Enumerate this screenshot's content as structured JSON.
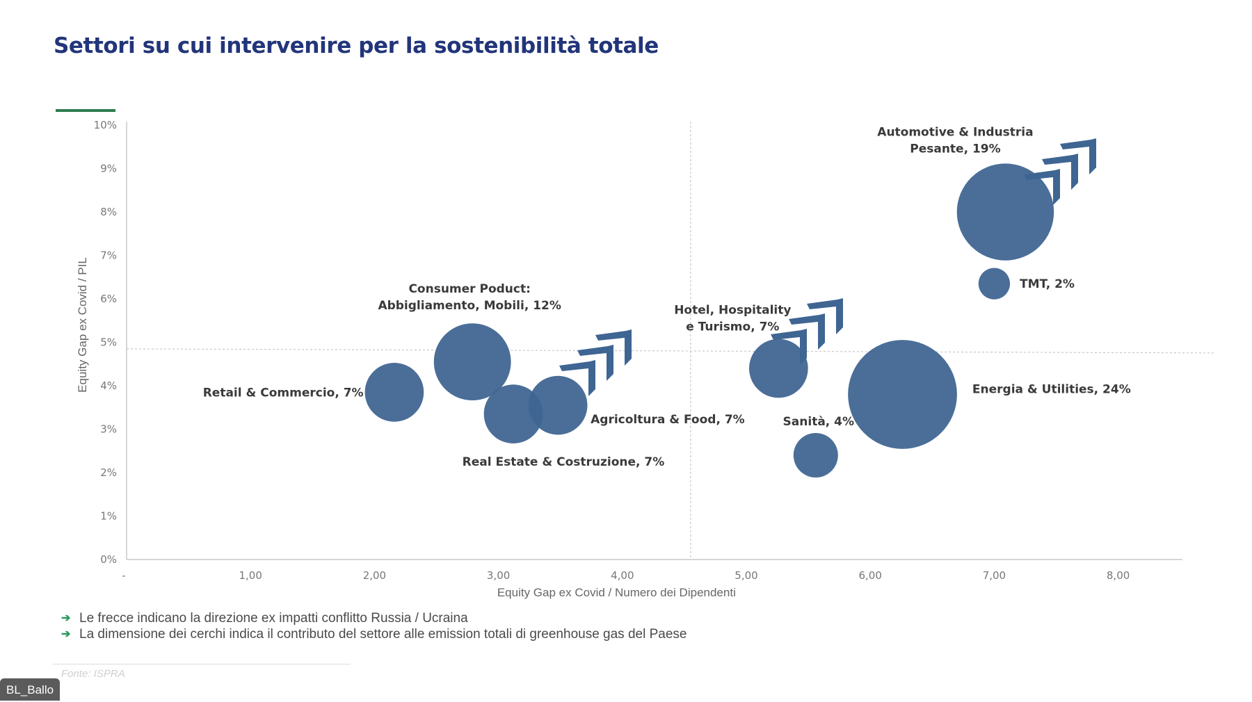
{
  "slide": {
    "title": "Settori su cui intervenire per la sostenibilità totale",
    "notes": [
      "Le frecce indicano la direzione ex impatti conflitto Russia / Ucraina",
      "La dimensione dei cerchi indica il contributo del settore alle emission  totali di greenhouse gas del Paese"
    ],
    "source": "Fonte: ISPRA",
    "user_tag": "BL_Ballo",
    "colors": {
      "title": "#22357a",
      "bubble": "#3f6592",
      "accent": "#2e7d4f",
      "note_arrow": "#2e9a5a"
    },
    "icons": {
      "note_bullet": "arrow-right-icon"
    }
  },
  "chart_data": {
    "type": "bubble",
    "title": "Settori su cui intervenire per la sostenibilità totale",
    "xlabel": "Equity Gap ex Covid / Numero dei Dipendenti",
    "ylabel": "Equity Gap ex Covid / PIL",
    "xlim": [
      0,
      8.5
    ],
    "ylim": [
      0,
      10
    ],
    "x_ticks": [
      {
        "value": 0,
        "label": "-"
      },
      {
        "value": 1,
        "label": "1,00"
      },
      {
        "value": 2,
        "label": "2,00"
      },
      {
        "value": 3,
        "label": "3,00"
      },
      {
        "value": 4,
        "label": "4,00"
      },
      {
        "value": 5,
        "label": "5,00"
      },
      {
        "value": 6,
        "label": "6,00"
      },
      {
        "value": 7,
        "label": "7,00"
      },
      {
        "value": 8,
        "label": "8,00"
      }
    ],
    "y_ticks": [
      {
        "value": 0,
        "label": "0%"
      },
      {
        "value": 1,
        "label": "1%"
      },
      {
        "value": 2,
        "label": "2%"
      },
      {
        "value": 3,
        "label": "3%"
      },
      {
        "value": 4,
        "label": "4%"
      },
      {
        "value": 5,
        "label": "5%"
      },
      {
        "value": 6,
        "label": "6%"
      },
      {
        "value": 7,
        "label": "7%"
      },
      {
        "value": 8,
        "label": "8%"
      },
      {
        "value": 9,
        "label": "9%"
      },
      {
        "value": 10,
        "label": "10%"
      }
    ],
    "grid": false,
    "reference_lines": {
      "vertical_x": 4.55,
      "horizontal_y": 4.85
    },
    "size_meaning": "share of national greenhouse gas emissions (%)",
    "arrow_meaning": "direction ex impacts of Russia / Ukraine conflict",
    "points": [
      {
        "name": "Retail & Commercio",
        "label_lines": [
          "Retail & Commercio, 7%"
        ],
        "x": 2.16,
        "y": 3.85,
        "size": 7,
        "label_pos": "left",
        "arrow": false
      },
      {
        "name": "Consumer Poduct: Abbigliamento, Mobili",
        "label_lines": [
          "Consumer Poduct:",
          "Abbigliamento, Mobili, 12%"
        ],
        "x": 2.79,
        "y": 4.55,
        "size": 12,
        "label_pos": "top",
        "arrow": false
      },
      {
        "name": "Real Estate & Costruzione",
        "label_lines": [
          "Real Estate & Costruzione, 7%"
        ],
        "x": 3.12,
        "y": 3.35,
        "size": 7,
        "label_pos": "bottom",
        "arrow": false
      },
      {
        "name": "Agricoltura & Food",
        "label_lines": [
          "Agricoltura & Food, 7%"
        ],
        "x": 3.48,
        "y": 3.55,
        "size": 7,
        "label_pos": "right-below",
        "arrow": true
      },
      {
        "name": "Hotel, Hospitality e Turismo",
        "label_lines": [
          "Hotel, Hospitality",
          "e Turismo, 7%"
        ],
        "x": 5.26,
        "y": 4.4,
        "size": 7,
        "label_pos": "top",
        "arrow": true
      },
      {
        "name": "Sanità",
        "label_lines": [
          "Sanità, 4%"
        ],
        "x": 5.56,
        "y": 2.4,
        "size": 4,
        "label_pos": "top",
        "arrow": false
      },
      {
        "name": "Energia & Utilities",
        "label_lines": [
          "Energia & Utilities, 24%"
        ],
        "x": 6.26,
        "y": 3.8,
        "size": 24,
        "label_pos": "right",
        "arrow": false
      },
      {
        "name": "Automotive & Industria Pesante",
        "label_lines": [
          "Automotive & Industria",
          "Pesante, 19%"
        ],
        "x": 7.09,
        "y": 8.0,
        "size": 19,
        "label_pos": "top",
        "arrow": true
      },
      {
        "name": "TMT",
        "label_lines": [
          "TMT, 2%"
        ],
        "x": 7.0,
        "y": 6.35,
        "size": 2,
        "label_pos": "right",
        "arrow": false
      }
    ]
  }
}
